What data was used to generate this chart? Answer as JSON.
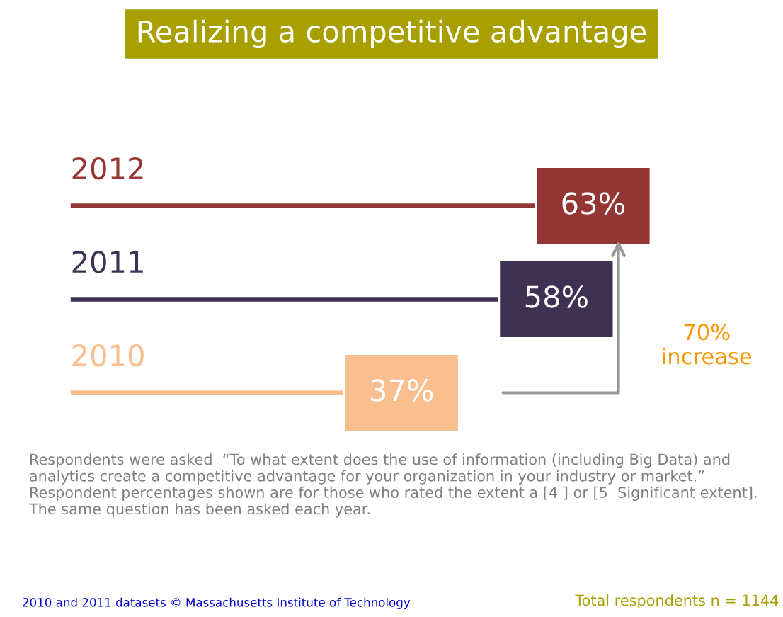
{
  "chart_data": {
    "type": "bar",
    "orientation": "horizontal",
    "title": "Realizing a competitive advantage",
    "categories": [
      "2012",
      "2011",
      "2010"
    ],
    "values": [
      63,
      58,
      37
    ],
    "value_labels": [
      "63%",
      "58%",
      "37%"
    ],
    "colors": [
      "#943634",
      "#3f3151",
      "#f9bf8f"
    ],
    "annotations": [
      "70%\nincrease",
      "Respondents were asked  “To what extent does the use of information (including Big Data) and analytics create a competitive advantage for your organization in your industry or market.” Respondent percentages shown are for those who rated the extent a [4 ] or [5  Significant extent]. The same question has been asked each year.",
      "2010 and 2011 datasets © Massachusetts Institute of Technology",
      "Total respondents n = 1144"
    ],
    "legend": false
  }
}
